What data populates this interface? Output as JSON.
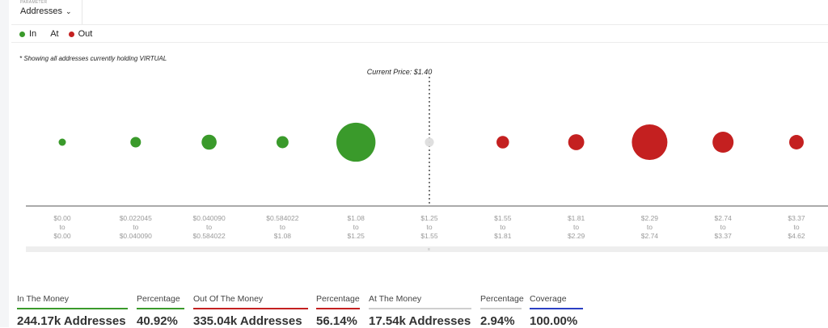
{
  "header": {
    "param_label": "PARAMETER",
    "select_value": "Addresses",
    "chevron_icon": "chevron-down-icon"
  },
  "legend": [
    {
      "label": "In",
      "color": "#3a9a2b"
    },
    {
      "label": "At",
      "color": "#dddddd"
    },
    {
      "label": "Out",
      "color": "#c42020"
    }
  ],
  "note": "* Showing all addresses currently holding VIRTUAL",
  "current_price_label": "Current Price: $1.40",
  "chart_data": {
    "type": "bubble",
    "categories": [
      {
        "from": "$0.00",
        "to": "$0.00"
      },
      {
        "from": "$0.022045",
        "to": "$0.040090"
      },
      {
        "from": "$0.040090",
        "to": "$0.584022"
      },
      {
        "from": "$0.584022",
        "to": "$1.08"
      },
      {
        "from": "$1.08",
        "to": "$1.25"
      },
      {
        "from": "$1.25",
        "to": "$1.55"
      },
      {
        "from": "$1.55",
        "to": "$1.81"
      },
      {
        "from": "$1.81",
        "to": "$2.29"
      },
      {
        "from": "$2.29",
        "to": "$2.74"
      },
      {
        "from": "$2.74",
        "to": "$3.37"
      },
      {
        "from": "$3.37",
        "to": "$4.62"
      }
    ],
    "status": [
      "in",
      "in",
      "in",
      "in",
      "in",
      "at",
      "out",
      "out",
      "out",
      "out",
      "out"
    ],
    "relative_size": [
      0.051,
      0.21,
      0.3,
      0.24,
      0.78,
      0.18,
      0.25,
      0.32,
      0.71,
      0.42,
      0.29
    ],
    "current_price": 1.4,
    "colors": {
      "in": "#3a9a2b",
      "at": "#dddddd",
      "out": "#c42020"
    },
    "grid": false,
    "legend_position": "top-left"
  },
  "stats": [
    {
      "label": "In The Money",
      "value": "244.17k Addresses",
      "color": "#3a9a2b"
    },
    {
      "label": "Percentage",
      "value": "40.92%",
      "color": "#3a9a2b"
    },
    {
      "label": "Out Of The Money",
      "value": "335.04k Addresses",
      "color": "#c42020"
    },
    {
      "label": "Percentage",
      "value": "56.14%",
      "color": "#c42020"
    },
    {
      "label": "At The Money",
      "value": "17.54k Addresses",
      "color": "#cfcfcf"
    },
    {
      "label": "Percentage",
      "value": "2.94%",
      "color": "#cfcfcf"
    },
    {
      "label": "Coverage",
      "value": "100.00%",
      "color": "#2b3fc4"
    }
  ]
}
